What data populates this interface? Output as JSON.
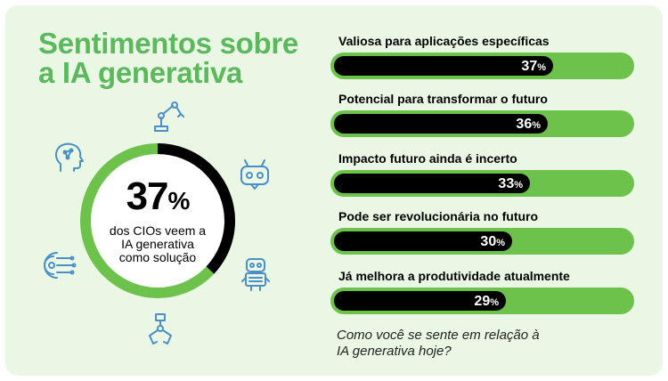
{
  "title": {
    "line1": "Sentimentos sobre",
    "line2": "a IA generativa"
  },
  "donut": {
    "value_number": "37",
    "value_suffix": "%",
    "percent": 37,
    "caption_line1": "dos CIOs veem a",
    "caption_line2": "IA generativa",
    "caption_line3": "como solução"
  },
  "colors": {
    "accent": "#6cc24a",
    "title_green": "#5cb85c",
    "bar_fill": "#000000",
    "background": "#e9f7e4",
    "icon_blue": "#4a8fc7"
  },
  "icons": [
    "robot-arm-icon",
    "ai-head-icon",
    "chatbot-icon",
    "gear-circuit-icon",
    "robot-icon",
    "robot-claw-icon"
  ],
  "chart_data": {
    "type": "bar",
    "orientation": "horizontal",
    "categories": [
      "Valiosa para aplicações específicas",
      "Potencial para transformar o futuro",
      "Impacto futuro ainda é incerto",
      "Pode ser revolucionária no futuro",
      "Já melhora a produtividade atualmente"
    ],
    "values": [
      37,
      36,
      33,
      30,
      29
    ],
    "value_labels": [
      "37",
      "36",
      "33",
      "30",
      "29"
    ],
    "unit": "%",
    "xlim": [
      0,
      50
    ]
  },
  "question": {
    "line1": "Como você se sente em relação à",
    "line2": "IA generativa hoje?"
  }
}
